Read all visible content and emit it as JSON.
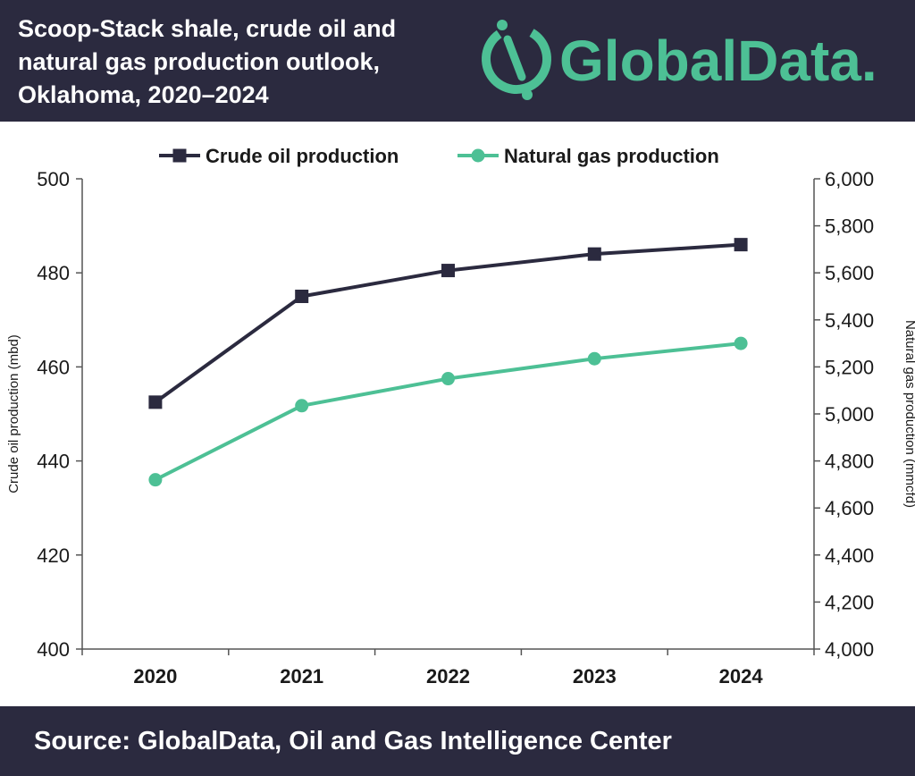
{
  "header": {
    "title_lines": [
      "Scoop-Stack shale, crude oil and",
      "natural gas production outlook,",
      "Oklahoma, 2020–2024"
    ],
    "brand": "GlobalData."
  },
  "footer": {
    "source": "Source:  GlobalData, Oil and Gas Intelligence Center"
  },
  "colors": {
    "header_bg": "#2b2a3f",
    "crude": "#2b2a3f",
    "gas": "#4dc095",
    "brand": "#4dc095"
  },
  "chart_data": {
    "type": "line",
    "categories": [
      "2020",
      "2021",
      "2022",
      "2023",
      "2024"
    ],
    "series": [
      {
        "name": "Crude oil production",
        "axis": "left",
        "marker": "square",
        "values": [
          452.5,
          475,
          480.5,
          484,
          486
        ]
      },
      {
        "name": "Natural gas production",
        "axis": "right",
        "marker": "circle",
        "values": [
          4720,
          5035,
          5150,
          5235,
          5300
        ]
      }
    ],
    "ylabel": "Crude oil production (mbd)",
    "y2label": "Natural gas production (mmcfd)",
    "ylim": [
      400,
      500
    ],
    "y2lim": [
      4000,
      6000
    ],
    "yticks": [
      "400",
      "420",
      "440",
      "460",
      "480",
      "500"
    ],
    "y2ticks": [
      "4,000",
      "4,200",
      "4,400",
      "4,600",
      "4,800",
      "5,000",
      "5,200",
      "5,400",
      "5,600",
      "5,800",
      "6,000"
    ],
    "legend": "top-center",
    "grid": false
  }
}
